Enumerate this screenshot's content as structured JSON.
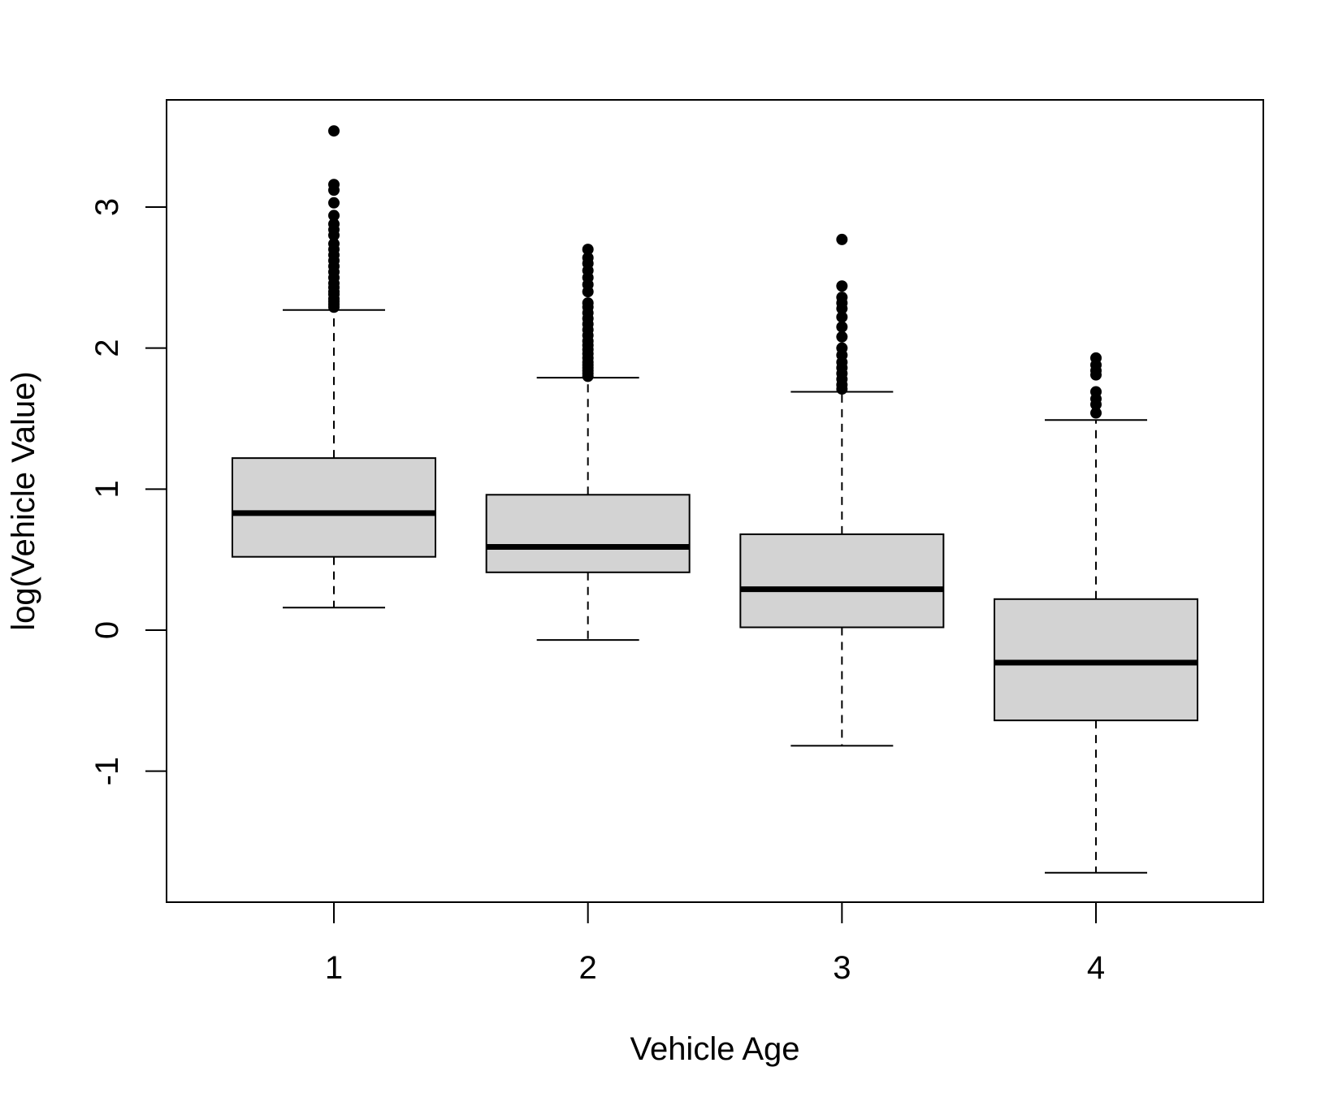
{
  "chart_data": {
    "type": "box",
    "title": "",
    "xlabel": "Vehicle Age",
    "ylabel": "log(Vehicle Value)",
    "ylim": [
      -1.9,
      3.7
    ],
    "yticks": [
      -1,
      0,
      1,
      2,
      3
    ],
    "ytick_labels": [
      "-1",
      "0",
      "1",
      "2",
      "3"
    ],
    "categories": [
      "1",
      "2",
      "3",
      "4"
    ],
    "grid": false,
    "box_color": "#d3d3d3",
    "line_color": "#000000",
    "boxes": [
      {
        "category": "1",
        "whisker_low": 0.16,
        "q1": 0.52,
        "median": 0.83,
        "q3": 1.22,
        "whisker_high": 2.27,
        "outliers": [
          2.29,
          2.31,
          2.33,
          2.35,
          2.38,
          2.4,
          2.43,
          2.46,
          2.5,
          2.54,
          2.58,
          2.62,
          2.66,
          2.7,
          2.74,
          2.8,
          2.84,
          2.88,
          2.94,
          3.03,
          3.12,
          3.16,
          3.54
        ]
      },
      {
        "category": "2",
        "whisker_low": -0.07,
        "q1": 0.41,
        "median": 0.59,
        "q3": 0.96,
        "whisker_high": 1.79,
        "outliers": [
          1.8,
          1.82,
          1.84,
          1.86,
          1.88,
          1.9,
          1.93,
          1.96,
          1.99,
          2.02,
          2.05,
          2.09,
          2.13,
          2.17,
          2.21,
          2.25,
          2.29,
          2.32,
          2.4,
          2.45,
          2.5,
          2.55,
          2.6,
          2.64,
          2.7
        ]
      },
      {
        "category": "3",
        "whisker_low": -0.82,
        "q1": 0.02,
        "median": 0.29,
        "q3": 0.68,
        "whisker_high": 1.69,
        "outliers": [
          1.71,
          1.74,
          1.78,
          1.82,
          1.86,
          1.9,
          1.95,
          2.0,
          2.08,
          2.15,
          2.22,
          2.28,
          2.32,
          2.36,
          2.44,
          2.77
        ]
      },
      {
        "category": "4",
        "whisker_low": -1.72,
        "q1": -0.64,
        "median": -0.23,
        "q3": 0.22,
        "whisker_high": 1.49,
        "outliers": [
          1.54,
          1.6,
          1.64,
          1.69,
          1.81,
          1.84,
          1.88,
          1.93
        ]
      }
    ]
  }
}
